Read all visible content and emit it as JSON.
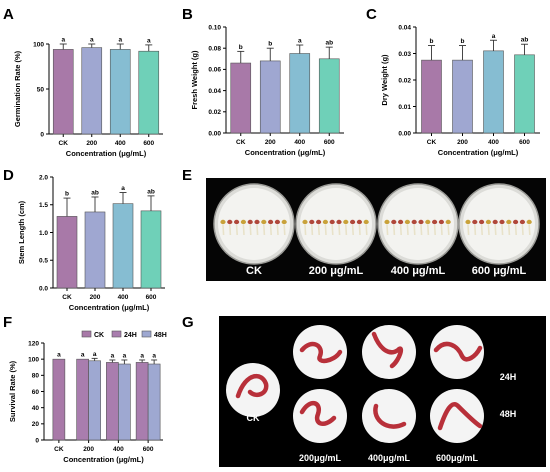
{
  "panel_letters": {
    "A": "A",
    "B": "B",
    "C": "C",
    "D": "D",
    "E": "E",
    "F": "F",
    "G": "G"
  },
  "colors": {
    "CK": "#A879A8",
    "200": "#9FA7D1",
    "400": "#86BDD2",
    "600": "#6FD0B8",
    "24H": "#A97DAE",
    "48H": "#9EA8D1",
    "worm": "#B8303A"
  },
  "chart_data": [
    {
      "id": "A",
      "type": "bar",
      "categories": [
        "CK",
        "200",
        "400",
        "600"
      ],
      "values": [
        94,
        96,
        94,
        92
      ],
      "errors": [
        6,
        4,
        6,
        7
      ],
      "significance": [
        "a",
        "a",
        "a",
        "a"
      ],
      "xlabel": "Concentration (μg/mL)",
      "ylabel": "Germination Rate (%)",
      "ylim": [
        0,
        100
      ],
      "yticks": [
        0,
        50,
        100
      ],
      "ytick_labels": [
        "0",
        "50",
        "100"
      ]
    },
    {
      "id": "B",
      "type": "bar",
      "categories": [
        "CK",
        "200",
        "400",
        "600"
      ],
      "values": [
        0.066,
        0.068,
        0.075,
        0.07
      ],
      "errors": [
        0.011,
        0.012,
        0.008,
        0.011
      ],
      "significance": [
        "b",
        "b",
        "a",
        "ab"
      ],
      "xlabel": "Concentration (μg/mL)",
      "ylabel": "Fresh Weight (g)",
      "ylim": [
        0,
        0.1
      ],
      "yticks": [
        0,
        0.02,
        0.04,
        0.06,
        0.08,
        0.1
      ],
      "ytick_labels": [
        "0.00",
        "0.02",
        "0.04",
        "0.06",
        "0.08",
        "0.10"
      ]
    },
    {
      "id": "C",
      "type": "bar",
      "categories": [
        "CK",
        "200",
        "400",
        "600"
      ],
      "values": [
        0.0275,
        0.0275,
        0.031,
        0.0295
      ],
      "errors": [
        0.0055,
        0.0055,
        0.004,
        0.004
      ],
      "significance": [
        "b",
        "b",
        "a",
        "ab"
      ],
      "xlabel": "Concentration (μg/mL)",
      "ylabel": "Dry Weight (g)",
      "ylim": [
        0,
        0.04
      ],
      "yticks": [
        0,
        0.01,
        0.02,
        0.03,
        0.04
      ],
      "ytick_labels": [
        "0.00",
        "0.01",
        "0.02",
        "0.03",
        "0.04"
      ]
    },
    {
      "id": "D",
      "type": "bar",
      "categories": [
        "CK",
        "200",
        "400",
        "600"
      ],
      "values": [
        1.29,
        1.37,
        1.52,
        1.39
      ],
      "errors": [
        0.33,
        0.27,
        0.2,
        0.27
      ],
      "significance": [
        "b",
        "ab",
        "a",
        "ab"
      ],
      "xlabel": "Concentration (μg/mL)",
      "ylabel": "Stem Length (cm)",
      "ylim": [
        0,
        2
      ],
      "yticks": [
        0,
        0.5,
        1,
        1.5,
        2
      ],
      "ytick_labels": [
        "0.0",
        "0.5",
        "1.0",
        "1.5",
        "2.0"
      ]
    },
    {
      "id": "F",
      "type": "bar",
      "categories": [
        "CK",
        "200",
        "400",
        "600"
      ],
      "series": [
        {
          "name": "CK",
          "values": [
            100,
            null,
            null,
            null
          ],
          "errors": [
            0,
            null,
            null,
            null
          ],
          "significance": [
            "a",
            "",
            "",
            ""
          ]
        },
        {
          "name": "24H",
          "values": [
            null,
            100,
            96,
            96
          ],
          "errors": [
            null,
            0,
            3,
            3
          ],
          "significance": [
            "",
            "a",
            "a",
            "a"
          ]
        },
        {
          "name": "48H",
          "values": [
            null,
            98,
            94,
            94
          ],
          "errors": [
            null,
            3,
            5,
            5
          ],
          "significance": [
            "",
            "a",
            "a",
            "a"
          ]
        }
      ],
      "xlabel": "Concentration (μg/mL)",
      "ylabel": "Survival Rate (%)",
      "ylim": [
        0,
        120
      ],
      "yticks": [
        0,
        20,
        40,
        60,
        80,
        100,
        120
      ],
      "ytick_labels": [
        "0",
        "20",
        "40",
        "60",
        "80",
        "100",
        "120"
      ],
      "legend": "top"
    }
  ],
  "panel_e": {
    "labels": [
      "CK",
      "200 μg/mL",
      "400 μg/mL",
      "600 μg/mL"
    ]
  },
  "panel_g": {
    "row_labels": [
      "24H",
      "48H"
    ],
    "col_labels": [
      "CK",
      "200μg/mL",
      "400μg/mL",
      "600μg/mL"
    ]
  }
}
